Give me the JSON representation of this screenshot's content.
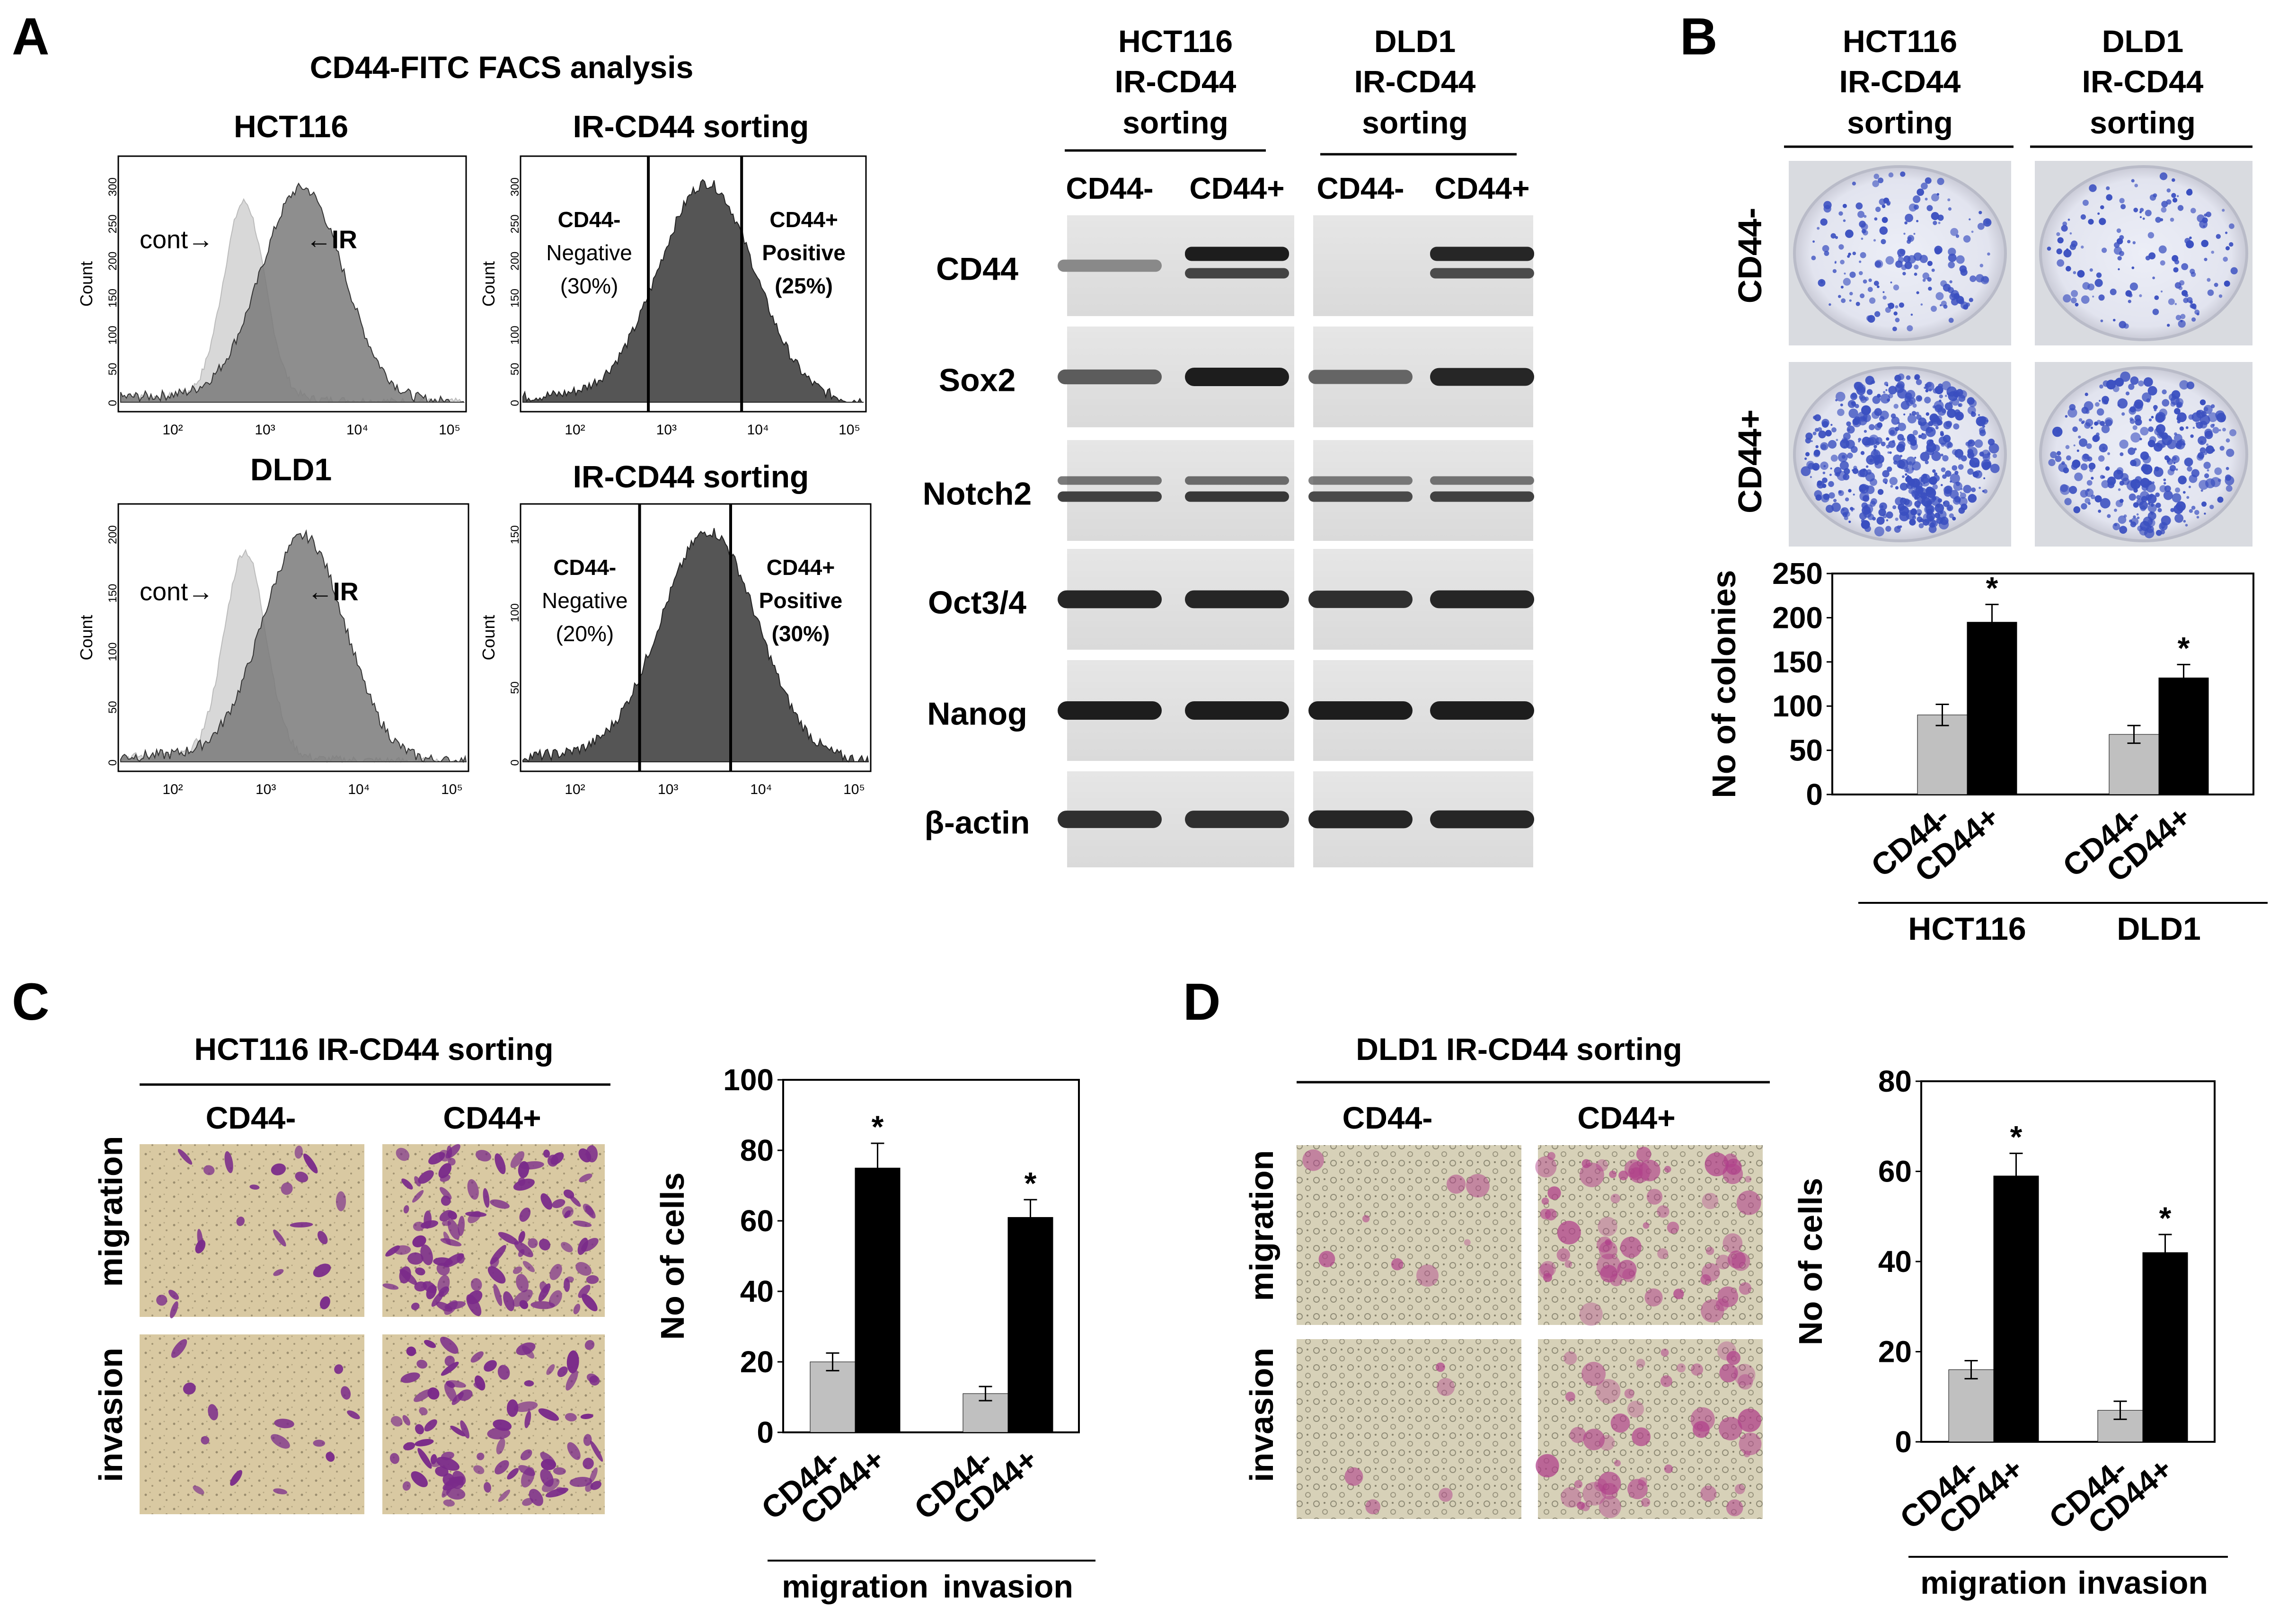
{
  "panel_letters": {
    "a": "A",
    "b": "B",
    "c": "C",
    "d": "D"
  },
  "facs": {
    "title": "CD44-FITC FACS analysis",
    "axis_label": "Count",
    "x_ticks": [
      "10²",
      "10³",
      "10⁴",
      "10⁵"
    ],
    "histograms": [
      {
        "title": "HCT116",
        "left_label": "cont→",
        "right_label": "←IR",
        "y_ticks": [
          "0",
          "50",
          "100",
          "150",
          "200",
          "250",
          "300"
        ]
      },
      {
        "title": "IR-CD44 sorting",
        "neg_line1": "CD44-",
        "neg_line2": "Negative",
        "neg_pct": "(30%)",
        "pos_line1": "CD44+",
        "pos_line2": "Positive",
        "pos_pct": "(25%)",
        "y_ticks": [
          "0",
          "50",
          "100",
          "150",
          "200",
          "250",
          "300"
        ]
      },
      {
        "title": "DLD1",
        "left_label": "cont→",
        "right_label": "←IR",
        "y_ticks": [
          "0",
          "50",
          "100",
          "150",
          "200"
        ]
      },
      {
        "title": "IR-CD44 sorting",
        "neg_line1": "CD44-",
        "neg_line2": "Negative",
        "neg_pct": "(20%)",
        "pos_line1": "CD44+",
        "pos_line2": "Positive",
        "pos_pct": "(30%)",
        "y_ticks": [
          "0",
          "50",
          "100",
          "150"
        ]
      }
    ]
  },
  "western": {
    "groups": [
      {
        "line1": "HCT116",
        "line2": "IR-CD44",
        "line3": "sorting",
        "lanes": [
          "CD44-",
          "CD44+"
        ]
      },
      {
        "line1": "DLD1",
        "line2": "IR-CD44",
        "line3": "sorting",
        "lanes": [
          "CD44-",
          "CD44+"
        ]
      }
    ],
    "proteins": [
      "CD44",
      "Sox2",
      "Notch2",
      "Oct3/4",
      "Nanog",
      "β-actin"
    ]
  },
  "colony": {
    "groups": [
      {
        "line1": "HCT116",
        "line2": "IR-CD44",
        "line3": "sorting"
      },
      {
        "line1": "DLD1",
        "line2": "IR-CD44",
        "line3": "sorting"
      }
    ],
    "row_labels": [
      "CD44-",
      "CD44+"
    ]
  },
  "panel_c": {
    "title": "HCT116 IR-CD44 sorting",
    "columns": [
      "CD44-",
      "CD44+"
    ],
    "rows": [
      "migration",
      "invasion"
    ]
  },
  "panel_d": {
    "title": "DLD1 IR-CD44 sorting",
    "columns": [
      "CD44-",
      "CD44+"
    ],
    "rows": [
      "migration",
      "invasion"
    ]
  },
  "colors": {
    "cd44_neg": "#c0c0c0",
    "cd44_pos": "#000000",
    "histogram_ir": "#7a7a7a",
    "histogram_cont": "#d8d8d8",
    "plate_blue": "#3a4fc0",
    "cell_purple": "#7a2a8a",
    "cell_magenta": "#b0408a"
  },
  "chart_data": [
    {
      "type": "bar",
      "ylabel": "No of colonies",
      "ylim": [
        0,
        250
      ],
      "yticks": [
        "0",
        "50",
        "100",
        "150",
        "200",
        "250"
      ],
      "groups": [
        "HCT116",
        "DLD1"
      ],
      "categories": [
        "CD44-",
        "CD44+"
      ],
      "series": [
        {
          "values": [
            90,
            195
          ],
          "errors": [
            12,
            20
          ],
          "sig": [
            "",
            "*"
          ]
        },
        {
          "values": [
            68,
            132
          ],
          "errors": [
            10,
            15
          ],
          "sig": [
            "",
            "*"
          ]
        }
      ]
    },
    {
      "type": "bar",
      "ylabel": "No of  cells",
      "ylim": [
        0,
        100
      ],
      "yticks": [
        "0",
        "20",
        "40",
        "60",
        "80",
        "100"
      ],
      "groups": [
        "migration",
        "invasion"
      ],
      "categories": [
        "CD44-",
        "CD44+"
      ],
      "series": [
        {
          "values": [
            20,
            75
          ],
          "errors": [
            2.5,
            7
          ],
          "sig": [
            "",
            "*"
          ]
        },
        {
          "values": [
            11,
            61
          ],
          "errors": [
            2,
            5
          ],
          "sig": [
            "",
            "*"
          ]
        }
      ]
    },
    {
      "type": "bar",
      "ylabel": "No of  cells",
      "ylim": [
        0,
        80
      ],
      "yticks": [
        "0",
        "20",
        "40",
        "60",
        "80"
      ],
      "groups": [
        "migration",
        "invasion"
      ],
      "categories": [
        "CD44-",
        "CD44+"
      ],
      "series": [
        {
          "values": [
            16,
            59
          ],
          "errors": [
            2,
            5
          ],
          "sig": [
            "",
            "*"
          ]
        },
        {
          "values": [
            7,
            42
          ],
          "errors": [
            2,
            4
          ],
          "sig": [
            "",
            "*"
          ]
        }
      ]
    }
  ]
}
